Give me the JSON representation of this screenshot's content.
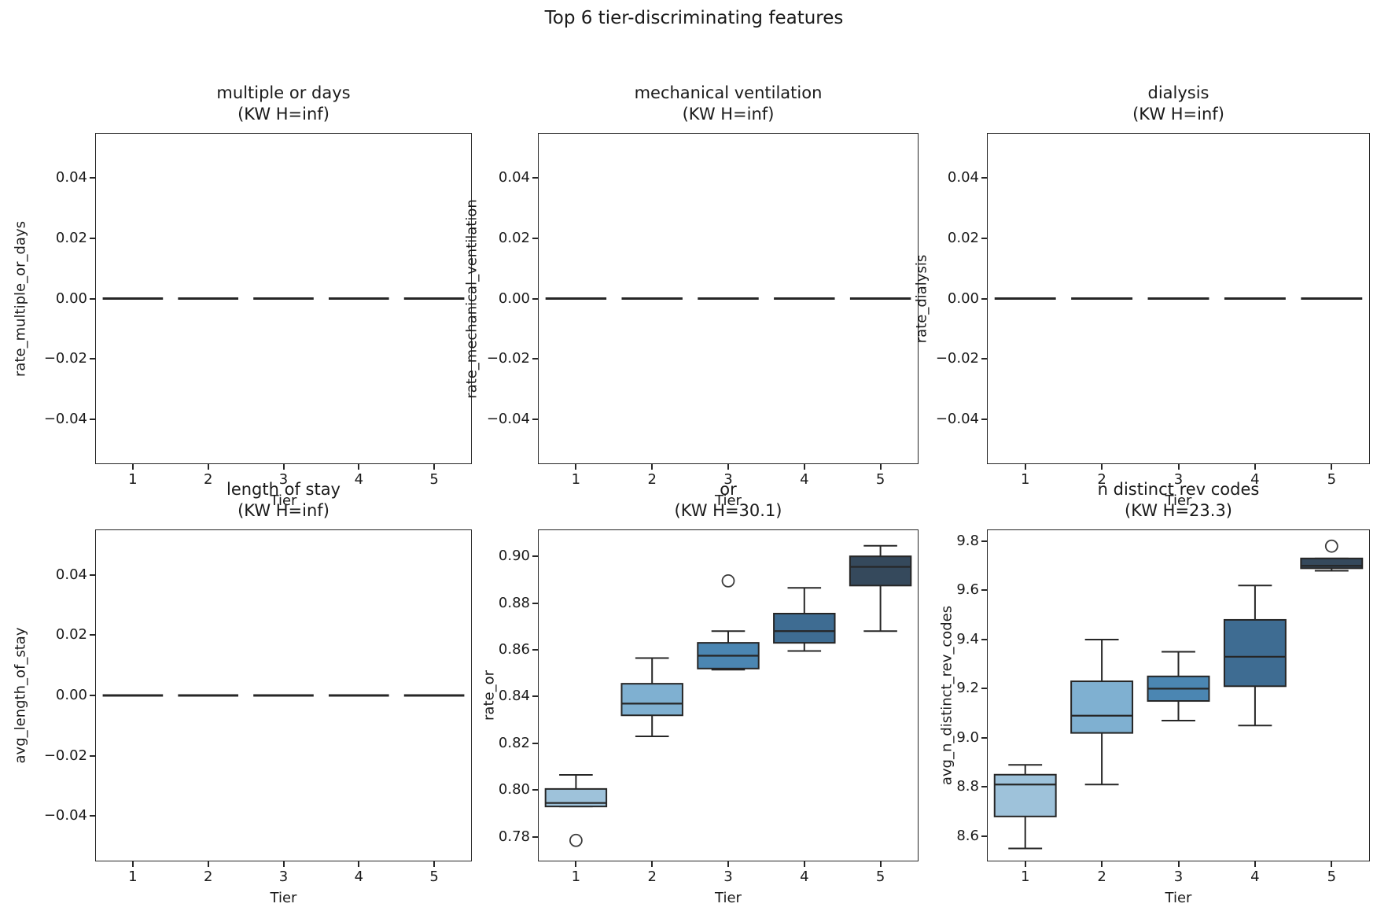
{
  "figure": {
    "title": "Top 6 tier-discriminating features",
    "background": "#ffffff",
    "text_color": "#1a1a1a",
    "spine_color": "#262626"
  },
  "palette": [
    "#9ec2da",
    "#7fb0d1",
    "#4b86b2",
    "#3e6c92",
    "#35495c"
  ],
  "chart_data": [
    {
      "type": "box",
      "title": "multiple or days",
      "subtitle": "(KW H=inf)",
      "kw_h": "inf",
      "xlabel": "Tier",
      "ylabel": "rate_multiple_or_days",
      "categories": [
        "1",
        "2",
        "3",
        "4",
        "5"
      ],
      "ylim": [
        -0.055,
        0.055
      ],
      "yticks": [
        {
          "v": 0.04,
          "label": "0.04"
        },
        {
          "v": 0.02,
          "label": "0.02"
        },
        {
          "v": 0.0,
          "label": "0.00"
        },
        {
          "v": -0.02,
          "label": "−0.02"
        },
        {
          "v": -0.04,
          "label": "−0.04"
        }
      ],
      "boxes": [
        {
          "whislo": 0,
          "q1": 0,
          "med": 0,
          "q3": 0,
          "whishi": 0,
          "fliers": []
        },
        {
          "whislo": 0,
          "q1": 0,
          "med": 0,
          "q3": 0,
          "whishi": 0,
          "fliers": []
        },
        {
          "whislo": 0,
          "q1": 0,
          "med": 0,
          "q3": 0,
          "whishi": 0,
          "fliers": []
        },
        {
          "whislo": 0,
          "q1": 0,
          "med": 0,
          "q3": 0,
          "whishi": 0,
          "fliers": []
        },
        {
          "whislo": 0,
          "q1": 0,
          "med": 0,
          "q3": 0,
          "whishi": 0,
          "fliers": []
        }
      ]
    },
    {
      "type": "box",
      "title": "mechanical ventilation",
      "subtitle": "(KW H=inf)",
      "kw_h": "inf",
      "xlabel": "Tier",
      "ylabel": "rate_mechanical_ventilation",
      "categories": [
        "1",
        "2",
        "3",
        "4",
        "5"
      ],
      "ylim": [
        -0.055,
        0.055
      ],
      "yticks": [
        {
          "v": 0.04,
          "label": "0.04"
        },
        {
          "v": 0.02,
          "label": "0.02"
        },
        {
          "v": 0.0,
          "label": "0.00"
        },
        {
          "v": -0.02,
          "label": "−0.02"
        },
        {
          "v": -0.04,
          "label": "−0.04"
        }
      ],
      "boxes": [
        {
          "whislo": 0,
          "q1": 0,
          "med": 0,
          "q3": 0,
          "whishi": 0,
          "fliers": []
        },
        {
          "whislo": 0,
          "q1": 0,
          "med": 0,
          "q3": 0,
          "whishi": 0,
          "fliers": []
        },
        {
          "whislo": 0,
          "q1": 0,
          "med": 0,
          "q3": 0,
          "whishi": 0,
          "fliers": []
        },
        {
          "whislo": 0,
          "q1": 0,
          "med": 0,
          "q3": 0,
          "whishi": 0,
          "fliers": []
        },
        {
          "whislo": 0,
          "q1": 0,
          "med": 0,
          "q3": 0,
          "whishi": 0,
          "fliers": []
        }
      ]
    },
    {
      "type": "box",
      "title": "dialysis",
      "subtitle": "(KW H=inf)",
      "kw_h": "inf",
      "xlabel": "Tier",
      "ylabel": "rate_dialysis",
      "categories": [
        "1",
        "2",
        "3",
        "4",
        "5"
      ],
      "ylim": [
        -0.055,
        0.055
      ],
      "yticks": [
        {
          "v": 0.04,
          "label": "0.04"
        },
        {
          "v": 0.02,
          "label": "0.02"
        },
        {
          "v": 0.0,
          "label": "0.00"
        },
        {
          "v": -0.02,
          "label": "−0.02"
        },
        {
          "v": -0.04,
          "label": "−0.04"
        }
      ],
      "boxes": [
        {
          "whislo": 0,
          "q1": 0,
          "med": 0,
          "q3": 0,
          "whishi": 0,
          "fliers": []
        },
        {
          "whislo": 0,
          "q1": 0,
          "med": 0,
          "q3": 0,
          "whishi": 0,
          "fliers": []
        },
        {
          "whislo": 0,
          "q1": 0,
          "med": 0,
          "q3": 0,
          "whishi": 0,
          "fliers": []
        },
        {
          "whislo": 0,
          "q1": 0,
          "med": 0,
          "q3": 0,
          "whishi": 0,
          "fliers": []
        },
        {
          "whislo": 0,
          "q1": 0,
          "med": 0,
          "q3": 0,
          "whishi": 0,
          "fliers": []
        }
      ]
    },
    {
      "type": "box",
      "title": "length of stay",
      "subtitle": "(KW H=inf)",
      "kw_h": "inf",
      "xlabel": "Tier",
      "ylabel": "avg_length_of_stay",
      "categories": [
        "1",
        "2",
        "3",
        "4",
        "5"
      ],
      "ylim": [
        -0.055,
        0.055
      ],
      "yticks": [
        {
          "v": 0.04,
          "label": "0.04"
        },
        {
          "v": 0.02,
          "label": "0.02"
        },
        {
          "v": 0.0,
          "label": "0.00"
        },
        {
          "v": -0.02,
          "label": "−0.02"
        },
        {
          "v": -0.04,
          "label": "−0.04"
        }
      ],
      "boxes": [
        {
          "whislo": 0,
          "q1": 0,
          "med": 0,
          "q3": 0,
          "whishi": 0,
          "fliers": []
        },
        {
          "whislo": 0,
          "q1": 0,
          "med": 0,
          "q3": 0,
          "whishi": 0,
          "fliers": []
        },
        {
          "whislo": 0,
          "q1": 0,
          "med": 0,
          "q3": 0,
          "whishi": 0,
          "fliers": []
        },
        {
          "whislo": 0,
          "q1": 0,
          "med": 0,
          "q3": 0,
          "whishi": 0,
          "fliers": []
        },
        {
          "whislo": 0,
          "q1": 0,
          "med": 0,
          "q3": 0,
          "whishi": 0,
          "fliers": []
        }
      ]
    },
    {
      "type": "box",
      "title": "or",
      "subtitle": "(KW H=30.1)",
      "kw_h": "30.1",
      "xlabel": "Tier",
      "ylabel": "rate_or",
      "categories": [
        "1",
        "2",
        "3",
        "4",
        "5"
      ],
      "ylim": [
        0.7695,
        0.9115
      ],
      "yticks": [
        {
          "v": 0.9,
          "label": "0.90"
        },
        {
          "v": 0.88,
          "label": "0.88"
        },
        {
          "v": 0.86,
          "label": "0.86"
        },
        {
          "v": 0.84,
          "label": "0.84"
        },
        {
          "v": 0.82,
          "label": "0.82"
        },
        {
          "v": 0.8,
          "label": "0.80"
        },
        {
          "v": 0.78,
          "label": "0.78"
        }
      ],
      "boxes": [
        {
          "whislo": 0.793,
          "q1": 0.793,
          "med": 0.7945,
          "q3": 0.8005,
          "whishi": 0.8065,
          "fliers": [
            0.7785
          ]
        },
        {
          "whislo": 0.823,
          "q1": 0.832,
          "med": 0.837,
          "q3": 0.8455,
          "whishi": 0.8565,
          "fliers": []
        },
        {
          "whislo": 0.8515,
          "q1": 0.852,
          "med": 0.8575,
          "q3": 0.863,
          "whishi": 0.868,
          "fliers": [
            0.8895
          ]
        },
        {
          "whislo": 0.8595,
          "q1": 0.863,
          "med": 0.868,
          "q3": 0.8755,
          "whishi": 0.8865,
          "fliers": []
        },
        {
          "whislo": 0.868,
          "q1": 0.8875,
          "med": 0.8955,
          "q3": 0.9,
          "whishi": 0.9045,
          "fliers": []
        }
      ]
    },
    {
      "type": "box",
      "title": "n distinct rev codes",
      "subtitle": "(KW H=23.3)",
      "kw_h": "23.3",
      "xlabel": "Tier",
      "ylabel": "avg_n_distinct_rev_codes",
      "categories": [
        "1",
        "2",
        "3",
        "4",
        "5"
      ],
      "ylim": [
        8.497,
        9.848
      ],
      "yticks": [
        {
          "v": 9.8,
          "label": "9.8"
        },
        {
          "v": 9.6,
          "label": "9.6"
        },
        {
          "v": 9.4,
          "label": "9.4"
        },
        {
          "v": 9.2,
          "label": "9.2"
        },
        {
          "v": 9.0,
          "label": "9.0"
        },
        {
          "v": 8.8,
          "label": "8.8"
        },
        {
          "v": 8.6,
          "label": "8.6"
        }
      ],
      "boxes": [
        {
          "whislo": 8.55,
          "q1": 8.68,
          "med": 8.81,
          "q3": 8.85,
          "whishi": 8.89,
          "fliers": []
        },
        {
          "whislo": 8.81,
          "q1": 9.02,
          "med": 9.09,
          "q3": 9.23,
          "whishi": 9.4,
          "fliers": []
        },
        {
          "whislo": 9.07,
          "q1": 9.15,
          "med": 9.2,
          "q3": 9.25,
          "whishi": 9.35,
          "fliers": []
        },
        {
          "whislo": 9.05,
          "q1": 9.21,
          "med": 9.33,
          "q3": 9.48,
          "whishi": 9.62,
          "fliers": []
        },
        {
          "whislo": 9.68,
          "q1": 9.69,
          "med": 9.7,
          "q3": 9.73,
          "whishi": 9.73,
          "fliers": [
            9.78
          ]
        }
      ]
    }
  ]
}
